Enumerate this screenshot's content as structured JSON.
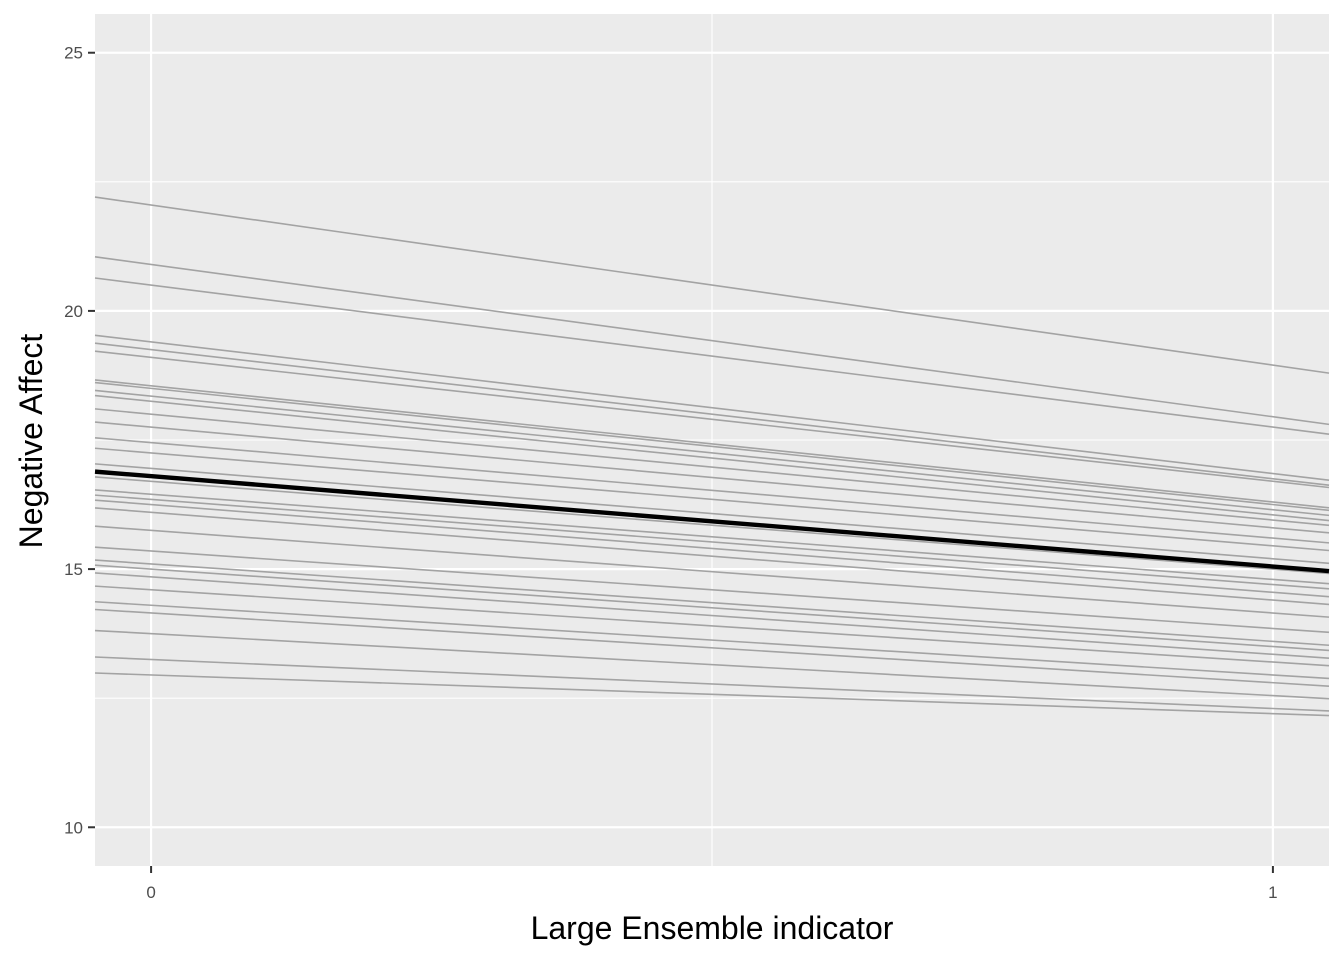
{
  "chart_data": {
    "type": "line",
    "xlabel": "Large Ensemble indicator",
    "ylabel": "Negative Affect",
    "xlim": [
      -0.05,
      1.05
    ],
    "ylim": [
      9.25,
      25.75
    ],
    "x_ticks": [
      0,
      1
    ],
    "y_ticks": [
      10,
      15,
      20,
      25
    ],
    "grid": true,
    "legend": "none",
    "colors": {
      "panel": "#ebebeb",
      "grid": "#ffffff",
      "individual": "#a3a3a3",
      "mean": "#000000",
      "tick_text": "#4d4d4d"
    },
    "mean_line": {
      "x": [
        0,
        1
      ],
      "y": [
        16.8,
        15.05
      ]
    },
    "individual_lines": [
      {
        "x": [
          0,
          1
        ],
        "y": [
          22.05,
          18.95
        ]
      },
      {
        "x": [
          0,
          1
        ],
        "y": [
          20.9,
          17.95
        ]
      },
      {
        "x": [
          0,
          1
        ],
        "y": [
          20.5,
          17.75
        ]
      },
      {
        "x": [
          0,
          1
        ],
        "y": [
          19.4,
          16.85
        ]
      },
      {
        "x": [
          0,
          1
        ],
        "y": [
          19.25,
          16.75
        ]
      },
      {
        "x": [
          0,
          1
        ],
        "y": [
          19.1,
          16.7
        ]
      },
      {
        "x": [
          0,
          1
        ],
        "y": [
          18.55,
          16.3
        ]
      },
      {
        "x": [
          0,
          1
        ],
        "y": [
          18.5,
          16.25
        ]
      },
      {
        "x": [
          0,
          1
        ],
        "y": [
          18.35,
          16.15
        ]
      },
      {
        "x": [
          0,
          1
        ],
        "y": [
          18.25,
          16.05
        ]
      },
      {
        "x": [
          0,
          1
        ],
        "y": [
          18.0,
          15.95
        ]
      },
      {
        "x": [
          0,
          1
        ],
        "y": [
          17.75,
          15.8
        ]
      },
      {
        "x": [
          0,
          1
        ],
        "y": [
          17.45,
          15.6
        ]
      },
      {
        "x": [
          0,
          1
        ],
        "y": [
          17.25,
          15.45
        ]
      },
      {
        "x": [
          0,
          1
        ],
        "y": [
          16.95,
          15.2
        ]
      },
      {
        "x": [
          0,
          1
        ],
        "y": [
          16.7,
          15.0
        ]
      },
      {
        "x": [
          0,
          1
        ],
        "y": [
          16.45,
          14.8
        ]
      },
      {
        "x": [
          0,
          1
        ],
        "y": [
          16.35,
          14.7
        ]
      },
      {
        "x": [
          0,
          1
        ],
        "y": [
          16.25,
          14.55
        ]
      },
      {
        "x": [
          0,
          1
        ],
        "y": [
          16.1,
          14.4
        ]
      },
      {
        "x": [
          0,
          1
        ],
        "y": [
          15.75,
          14.15
        ]
      },
      {
        "x": [
          0,
          1
        ],
        "y": [
          15.35,
          13.85
        ]
      },
      {
        "x": [
          0,
          1
        ],
        "y": [
          15.1,
          13.6
        ]
      },
      {
        "x": [
          0,
          1
        ],
        "y": [
          15.0,
          13.5
        ]
      },
      {
        "x": [
          0,
          1
        ],
        "y": [
          14.85,
          13.35
        ]
      },
      {
        "x": [
          0,
          1
        ],
        "y": [
          14.6,
          13.2
        ]
      },
      {
        "x": [
          0,
          1
        ],
        "y": [
          14.3,
          12.95
        ]
      },
      {
        "x": [
          0,
          1
        ],
        "y": [
          14.15,
          12.8
        ]
      },
      {
        "x": [
          0,
          1
        ],
        "y": [
          13.75,
          12.55
        ]
      },
      {
        "x": [
          0,
          1
        ],
        "y": [
          13.25,
          12.3
        ]
      },
      {
        "x": [
          0,
          1
        ],
        "y": [
          12.95,
          12.2
        ]
      }
    ]
  }
}
